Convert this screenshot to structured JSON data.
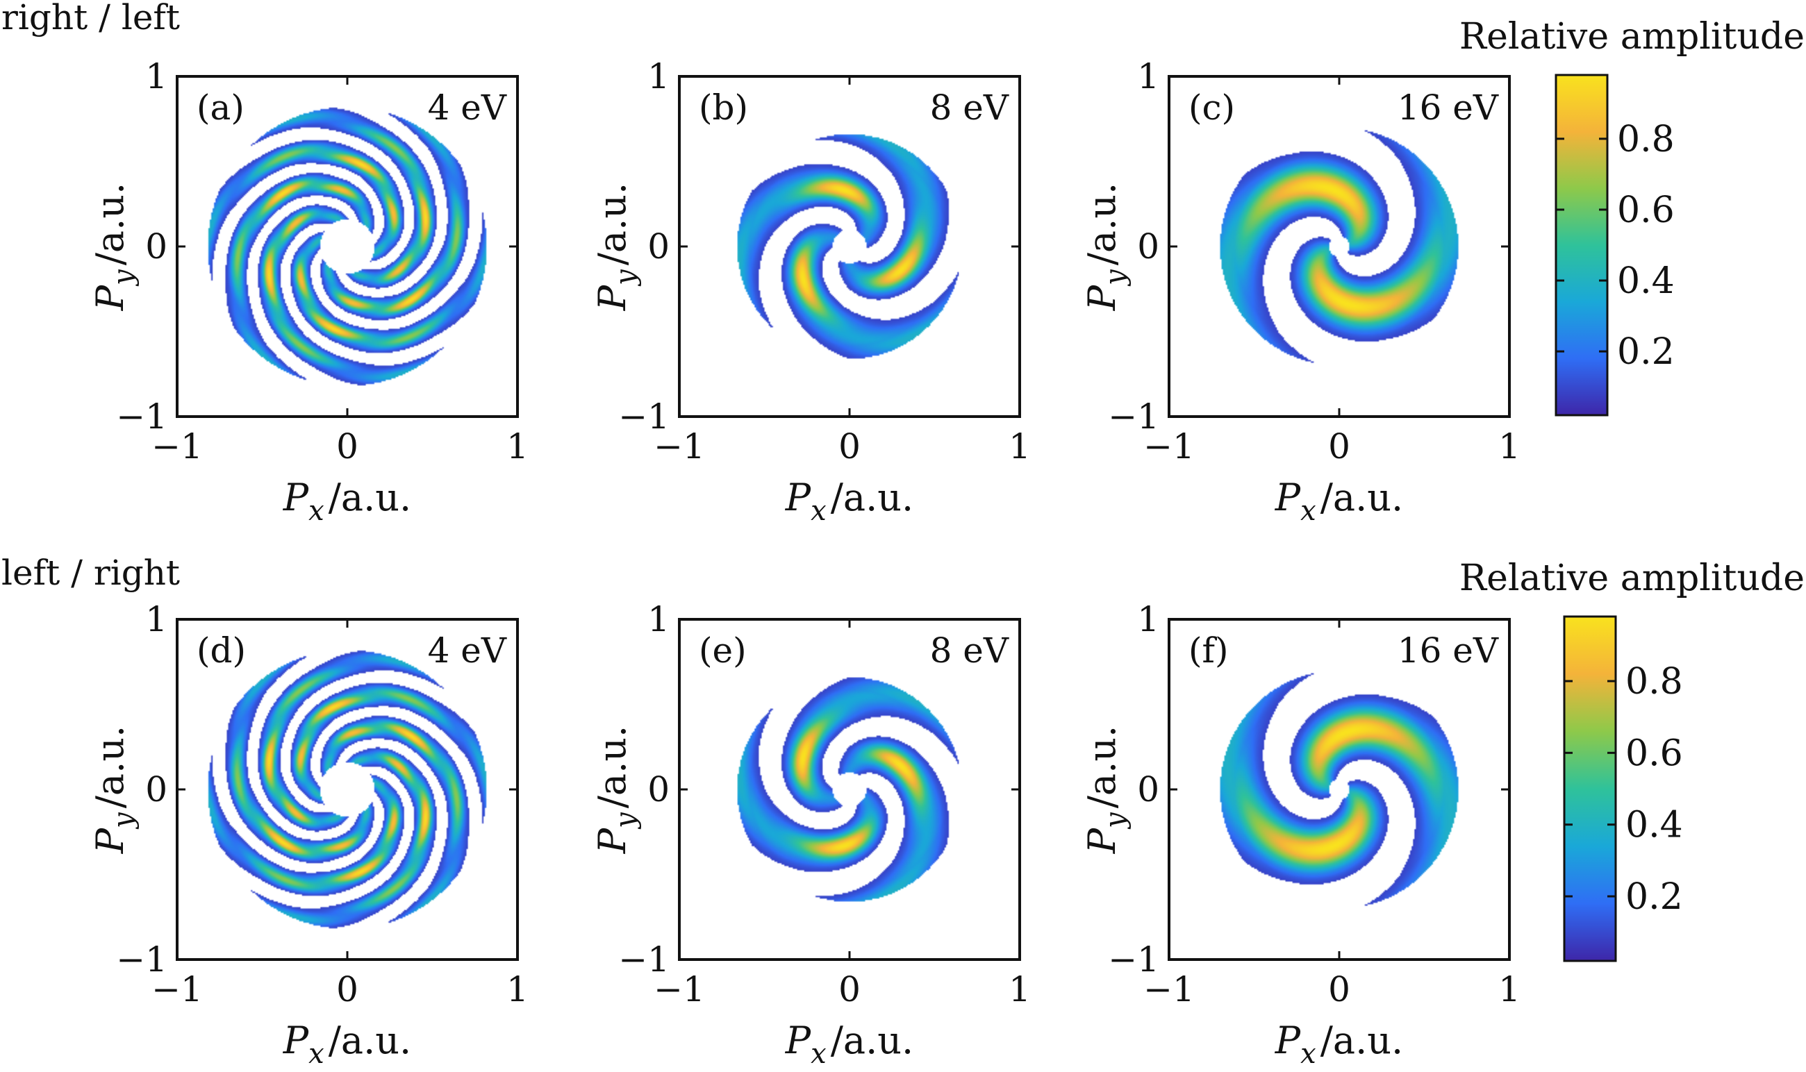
{
  "row_titles": [
    "right / left",
    "left / right"
  ],
  "axes": {
    "xlabel_sym": "P",
    "xlabel_sub": "x",
    "ylabel_sym": "P",
    "ylabel_sub": "y",
    "unit": "/a.u.",
    "ticks": [
      -1,
      0,
      1
    ],
    "tick_labels": [
      "−1",
      "0",
      "1"
    ],
    "xlim": [
      -1,
      1
    ],
    "ylim": [
      -1,
      1
    ]
  },
  "colorbar": {
    "title": "Relative amplitude",
    "ticks": [
      0.2,
      0.4,
      0.6,
      0.8
    ],
    "tick_labels": [
      "0.2",
      "0.4",
      "0.6",
      "0.8"
    ],
    "range": [
      0.02,
      0.98
    ],
    "colors": [
      "#3e26a8",
      "#2f6ef5",
      "#1aa8d8",
      "#2fc29a",
      "#8ec94a",
      "#f4b33a",
      "#f9e21e"
    ]
  },
  "chart_data": [
    {
      "type": "heatmap",
      "id": "a",
      "label": "(a)",
      "energy": "4 eV",
      "row": "right / left",
      "arms": 6,
      "rings": 5,
      "spin": 1,
      "radius_max": 0.82,
      "hole_radius": 0.16
    },
    {
      "type": "heatmap",
      "id": "b",
      "label": "(b)",
      "energy": "8 eV",
      "row": "right / left",
      "arms": 3,
      "rings": 2,
      "spin": 1,
      "radius_max": 0.66,
      "hole_radius": 0.1
    },
    {
      "type": "heatmap",
      "id": "c",
      "label": "(c)",
      "energy": "16 eV",
      "row": "right / left",
      "arms": 2,
      "rings": 1,
      "spin": 1,
      "radius_max": 0.7,
      "hole_radius": 0.06
    },
    {
      "type": "heatmap",
      "id": "d",
      "label": "(d)",
      "energy": "4 eV",
      "row": "left / right",
      "arms": 6,
      "rings": 5,
      "spin": -1,
      "radius_max": 0.82,
      "hole_radius": 0.16
    },
    {
      "type": "heatmap",
      "id": "e",
      "label": "(e)",
      "energy": "8 eV",
      "row": "left / right",
      "arms": 3,
      "rings": 2,
      "spin": -1,
      "radius_max": 0.66,
      "hole_radius": 0.1
    },
    {
      "type": "heatmap",
      "id": "f",
      "label": "(f)",
      "energy": "16 eV",
      "row": "left / right",
      "arms": 2,
      "rings": 1,
      "spin": -1,
      "radius_max": 0.7,
      "hole_radius": 0.06
    }
  ]
}
